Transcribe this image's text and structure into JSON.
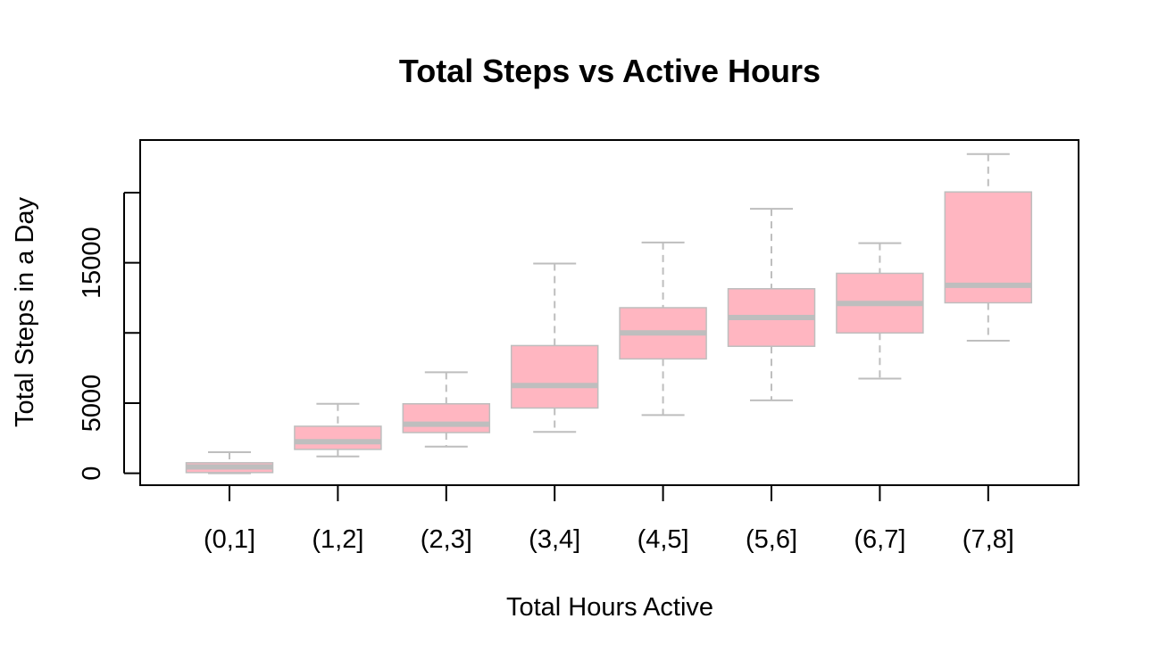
{
  "chart_data": {
    "type": "box",
    "title": "Total Steps vs Active Hours",
    "xlabel": "Total Hours Active",
    "ylabel": "Total Steps in a Day",
    "categories": [
      "(0,1]",
      "(1,2]",
      "(2,3]",
      "(3,4]",
      "(4,5]",
      "(5,6]",
      "(6,7]",
      "(7,8]"
    ],
    "yticks": [
      0,
      5000,
      15000
    ],
    "ylim": [
      -850,
      23750
    ],
    "grid": false,
    "legend": "none",
    "colors": {
      "box_fill": "#ffb6c1",
      "box_stroke": "#bebebe",
      "median": "#bebebe",
      "frame": "#000000"
    },
    "boxes": [
      {
        "min": 0,
        "q1": 50,
        "median": 450,
        "q3": 750,
        "max": 1500
      },
      {
        "min": 1200,
        "q1": 1700,
        "median": 2250,
        "q3": 3350,
        "max": 4950
      },
      {
        "min": 1900,
        "q1": 2900,
        "median": 3500,
        "q3": 4950,
        "max": 7200
      },
      {
        "min": 2950,
        "q1": 4650,
        "median": 6250,
        "q3": 9100,
        "max": 14950
      },
      {
        "min": 4150,
        "q1": 8150,
        "median": 10000,
        "q3": 11800,
        "max": 16450
      },
      {
        "min": 5200,
        "q1": 9050,
        "median": 11100,
        "q3": 13150,
        "max": 18850
      },
      {
        "min": 6750,
        "q1": 10000,
        "median": 12100,
        "q3": 14250,
        "max": 16400
      },
      {
        "min": 9450,
        "q1": 12150,
        "median": 13400,
        "q3": 20050,
        "max": 22750
      }
    ]
  }
}
